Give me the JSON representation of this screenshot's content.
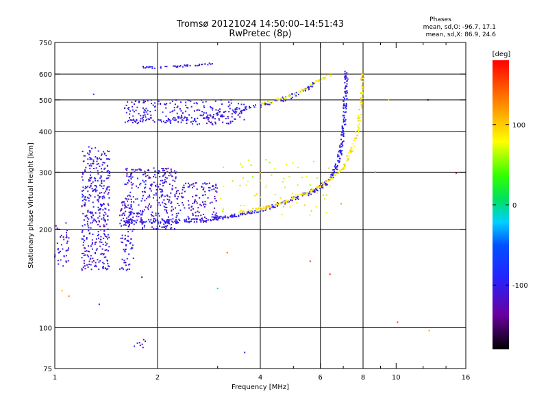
{
  "chart_data": {
    "type": "scatter",
    "title": "Tromsø 20121024 14:50:00–14:51:43",
    "subtitle": "RwPretec (8p)",
    "xlabel": "Frequency [MHz]",
    "ylabel": "Stationary phase Virtual Height [km]",
    "x_scale": "log",
    "y_scale": "log",
    "xlim": [
      1,
      16
    ],
    "ylim": [
      75,
      750
    ],
    "x_ticks": [
      1,
      2,
      4,
      6,
      8,
      10,
      16
    ],
    "x_tick_labels": [
      "1",
      "2",
      "4",
      "6",
      "8",
      "10",
      "16"
    ],
    "x_minor_ticks": [
      3,
      5,
      7,
      9,
      12,
      14
    ],
    "y_ticks": [
      75,
      100,
      200,
      300,
      400,
      500,
      600,
      750
    ],
    "y_tick_labels": [
      "75",
      "100",
      "200",
      "300",
      "400",
      "500",
      "600",
      "750"
    ],
    "grid_x": [
      2,
      4,
      6,
      8
    ],
    "grid_y": [
      100,
      200,
      300,
      400,
      500,
      600
    ],
    "stats": {
      "heading": "Phases",
      "line1": "mean, sd,O: -96.7, 17.1",
      "line2": "mean, sd,X: 86.9, 24.6"
    },
    "colorbar": {
      "label": "[deg]",
      "range": [
        -180,
        180
      ],
      "tick_values": [
        100,
        0,
        -100
      ],
      "tick_labels": [
        "100",
        "0",
        "-100"
      ]
    },
    "o_trace": {
      "name": "O",
      "phase_deg": -97,
      "points": [
        [
          1.6,
          212
        ],
        [
          1.8,
          212
        ],
        [
          2.0,
          212
        ],
        [
          2.2,
          212
        ],
        [
          2.5,
          213
        ],
        [
          2.8,
          215
        ],
        [
          3.0,
          217
        ],
        [
          3.3,
          220
        ],
        [
          3.6,
          224
        ],
        [
          4.0,
          230
        ],
        [
          4.5,
          238
        ],
        [
          5.0,
          248
        ],
        [
          5.5,
          258
        ],
        [
          6.0,
          270
        ],
        [
          6.3,
          280
        ],
        [
          6.6,
          300
        ],
        [
          6.8,
          330
        ],
        [
          6.9,
          360
        ],
        [
          7.0,
          400
        ],
        [
          7.05,
          450
        ],
        [
          7.1,
          500
        ],
        [
          7.12,
          560
        ],
        [
          7.15,
          605
        ]
      ]
    },
    "x_trace": {
      "name": "X",
      "phase_deg": 90,
      "points": [
        [
          3.5,
          226
        ],
        [
          4.0,
          232
        ],
        [
          4.5,
          240
        ],
        [
          5.0,
          250
        ],
        [
          5.5,
          260
        ],
        [
          6.0,
          272
        ],
        [
          6.5,
          288
        ],
        [
          7.0,
          310
        ],
        [
          7.4,
          350
        ],
        [
          7.7,
          400
        ],
        [
          7.85,
          460
        ],
        [
          7.95,
          540
        ],
        [
          8.0,
          620
        ]
      ]
    },
    "f1_trace": {
      "name": "O",
      "phase_deg": -100,
      "points": [
        [
          1.6,
          430
        ],
        [
          2.0,
          432
        ],
        [
          2.5,
          438
        ],
        [
          3.0,
          450
        ],
        [
          3.5,
          465
        ],
        [
          4.0,
          480
        ],
        [
          4.5,
          497
        ],
        [
          5.0,
          515
        ],
        [
          5.5,
          540
        ],
        [
          5.8,
          565
        ]
      ]
    },
    "f1_x_trace": {
      "name": "X",
      "phase_deg": 85,
      "points": [
        [
          4.0,
          485
        ],
        [
          4.5,
          500
        ],
        [
          5.0,
          520
        ],
        [
          5.5,
          545
        ],
        [
          6.0,
          575
        ],
        [
          6.5,
          600
        ]
      ]
    },
    "echo_620_trace": {
      "phase_deg": -100,
      "points": [
        [
          1.8,
          630
        ],
        [
          2.0,
          628
        ],
        [
          2.3,
          633
        ],
        [
          2.6,
          640
        ],
        [
          2.9,
          645
        ]
      ]
    },
    "spread_clusters": [
      {
        "x_range": [
          1.0,
          1.1
        ],
        "y_range": [
          150,
          210
        ],
        "count": 40,
        "phase_deg": -110
      },
      {
        "x_range": [
          1.2,
          1.45
        ],
        "y_range": [
          150,
          360
        ],
        "count": 380,
        "phase_deg": -105
      },
      {
        "x_range": [
          1.55,
          1.7
        ],
        "y_range": [
          150,
          250
        ],
        "count": 90,
        "phase_deg": -105
      },
      {
        "x_range": [
          1.6,
          2.3
        ],
        "y_range": [
          200,
          310
        ],
        "count": 320,
        "phase_deg": -108
      },
      {
        "x_range": [
          2.3,
          3.0
        ],
        "y_range": [
          210,
          280
        ],
        "count": 120,
        "phase_deg": -108
      },
      {
        "x_range": [
          1.6,
          3.6
        ],
        "y_range": [
          420,
          500
        ],
        "count": 240,
        "phase_deg": -105
      },
      {
        "x_range": [
          1.7,
          1.85
        ],
        "y_range": [
          86,
          92
        ],
        "count": 8,
        "phase_deg": -100
      },
      {
        "x_range": [
          3.0,
          6.5
        ],
        "y_range": [
          220,
          330
        ],
        "count": 70,
        "phase_deg": 80
      }
    ],
    "isolated_points": [
      {
        "x": 1.1,
        "y": 125,
        "phase_deg": 140
      },
      {
        "x": 1.05,
        "y": 130,
        "phase_deg": 110
      },
      {
        "x": 1.8,
        "y": 143,
        "phase_deg": -170
      },
      {
        "x": 1.35,
        "y": 118,
        "phase_deg": -100
      },
      {
        "x": 3.6,
        "y": 84,
        "phase_deg": -120
      },
      {
        "x": 3.2,
        "y": 170,
        "phase_deg": 140
      },
      {
        "x": 3.0,
        "y": 132,
        "phase_deg": -5
      },
      {
        "x": 5.6,
        "y": 160,
        "phase_deg": 160
      },
      {
        "x": 6.4,
        "y": 146,
        "phase_deg": 170
      },
      {
        "x": 10.1,
        "y": 104,
        "phase_deg": 160
      },
      {
        "x": 12.5,
        "y": 98,
        "phase_deg": 120
      },
      {
        "x": 12.4,
        "y": 500,
        "phase_deg": -170
      },
      {
        "x": 15.0,
        "y": 298,
        "phase_deg": 170
      },
      {
        "x": 9.5,
        "y": 500,
        "phase_deg": 100
      },
      {
        "x": 6.9,
        "y": 240,
        "phase_deg": 120
      },
      {
        "x": 8.7,
        "y": 300,
        "phase_deg": 10
      },
      {
        "x": 1.3,
        "y": 520,
        "phase_deg": -110
      }
    ]
  }
}
